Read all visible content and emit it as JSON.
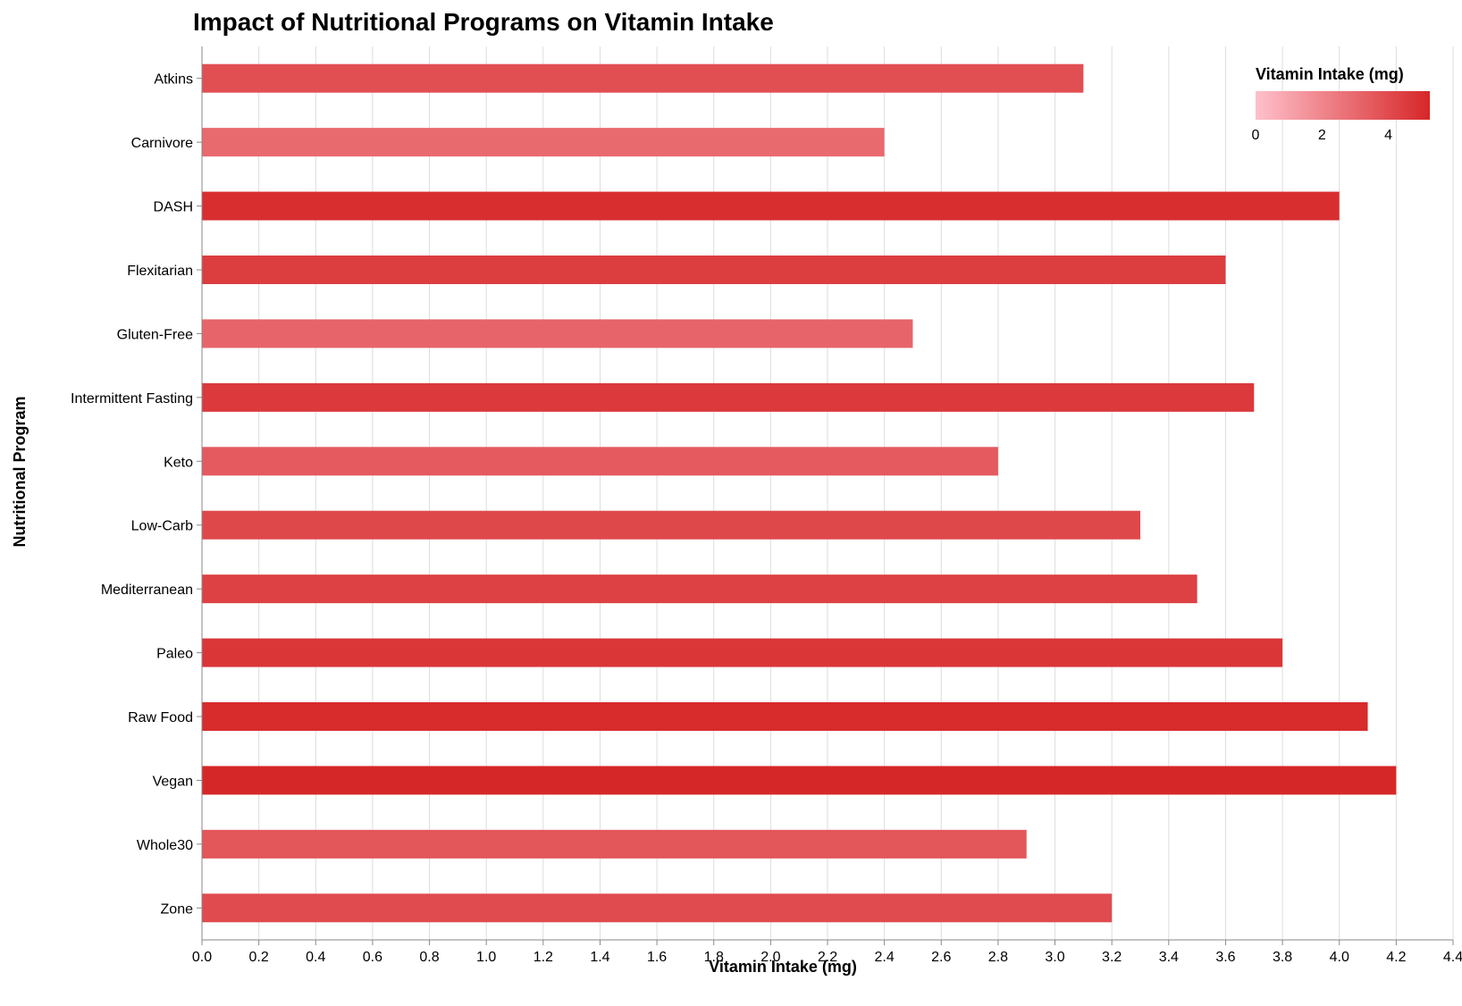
{
  "chart_data": {
    "type": "bar",
    "orientation": "horizontal",
    "title": "Impact of Nutritional Programs on Vitamin Intake",
    "xlabel": "Vitamin Intake (mg)",
    "ylabel": "Nutritional Program",
    "xlim": [
      0,
      4.4
    ],
    "x_ticks": [
      "0.0",
      "0.2",
      "0.4",
      "0.6",
      "0.8",
      "1.0",
      "1.2",
      "1.4",
      "1.6",
      "1.8",
      "2.0",
      "2.2",
      "2.4",
      "2.6",
      "2.8",
      "3.0",
      "3.2",
      "3.4",
      "3.6",
      "3.8",
      "4.0",
      "4.2",
      "4.4"
    ],
    "grid": true,
    "categories": [
      "Atkins",
      "Carnivore",
      "DASH",
      "Flexitarian",
      "Gluten-Free",
      "Intermittent Fasting",
      "Keto",
      "Low-Carb",
      "Mediterranean",
      "Paleo",
      "Raw Food",
      "Vegan",
      "Whole30",
      "Zone"
    ],
    "values": [
      3.1,
      2.4,
      4.0,
      3.6,
      2.5,
      3.7,
      2.8,
      3.3,
      3.5,
      3.8,
      4.1,
      4.2,
      2.9,
      3.2
    ],
    "color_scale": {
      "domain": [
        0,
        4.2
      ],
      "range": [
        "#ffc0cb",
        "#d62728"
      ]
    },
    "legend": {
      "title": "Vitamin Intake (mg)",
      "placement": "top-right",
      "labels": [
        "0",
        "2",
        "4"
      ]
    }
  }
}
